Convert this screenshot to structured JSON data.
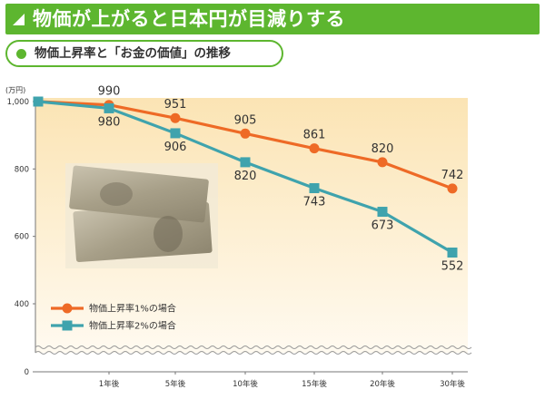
{
  "header": {
    "title": "物価が上がると日本円が目減りする"
  },
  "subtitle": "物価上昇率と「お金の価値」の推移",
  "chart_data": {
    "type": "line",
    "ylabel": "(万円)",
    "categories": [
      "",
      "1年後",
      "5年後",
      "10年後",
      "15年後",
      "20年後",
      "30年後"
    ],
    "y_ticks": [
      "0",
      "400",
      "600",
      "800",
      "1,000"
    ],
    "axis_break": true,
    "grid": false,
    "legend_position": "bottom-left",
    "series": [
      {
        "name": "物価上昇率1%の場合",
        "color": "#ee6a26",
        "marker": "circle",
        "values": [
          1000,
          990,
          951,
          905,
          861,
          820,
          742
        ],
        "labels": [
          "",
          "990",
          "951",
          "905",
          "861",
          "820",
          "742"
        ]
      },
      {
        "name": "物価上昇率2%の場合",
        "color": "#3fa3ad",
        "marker": "square",
        "values": [
          1000,
          980,
          906,
          820,
          743,
          673,
          552
        ],
        "labels": [
          "",
          "980",
          "906",
          "820",
          "743",
          "673",
          "552"
        ]
      }
    ]
  }
}
